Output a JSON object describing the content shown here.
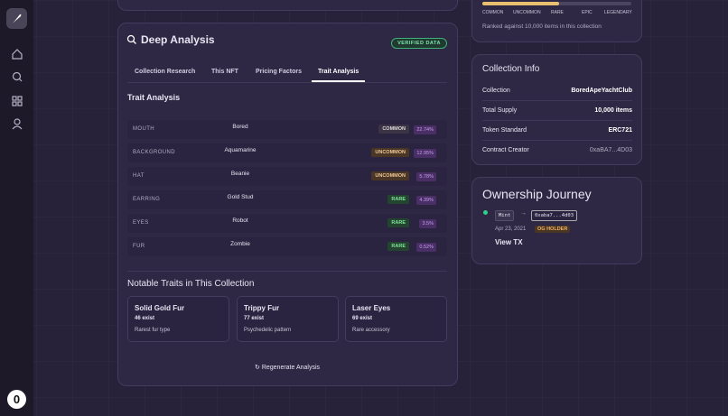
{
  "sidebar": {
    "avatar": "0"
  },
  "deep_analysis": {
    "title": "Deep Analysis",
    "badge": "VERIFIED DATA",
    "tabs": [
      "Collection Research",
      "This NFT",
      "Pricing Factors",
      "Trait Analysis"
    ],
    "trait_analysis": {
      "title": "Trait Analysis",
      "rows": [
        {
          "trait": "MOUTH",
          "value": "Bored",
          "rarity": "COMMON",
          "percent": "22.74%"
        },
        {
          "trait": "BACKGROUND",
          "value": "Aquamarine",
          "rarity": "UNCOMMON",
          "percent": "12.95%"
        },
        {
          "trait": "HAT",
          "value": "Beanie",
          "rarity": "UNCOMMON",
          "percent": "5.78%"
        },
        {
          "trait": "EARRING",
          "value": "Gold Stud",
          "rarity": "RARE",
          "percent": "4.39%"
        },
        {
          "trait": "EYES",
          "value": "Robot",
          "rarity": "RARE",
          "percent": "3.5%"
        },
        {
          "trait": "FUR",
          "value": "Zombie",
          "rarity": "RARE",
          "percent": "0.52%"
        }
      ]
    },
    "notable": {
      "title": "Notable Traits in This Collection",
      "cards": [
        {
          "name": "Solid Gold Fur",
          "count": "46 exist",
          "note": "Rarest fur type"
        },
        {
          "name": "Trippy Fur",
          "count": "77 exist",
          "note": "Psychedelic pattern"
        },
        {
          "name": "Laser Eyes",
          "count": "69 exist",
          "note": "Rare accessory"
        }
      ]
    },
    "regenerate": "Regenerate Analysis"
  },
  "rarity_panel": {
    "levels": [
      "COMMON",
      "UNCOMMON",
      "RARE",
      "EPIC",
      "LEGENDARY"
    ],
    "caption": "Ranked against 10,000 items in this collection"
  },
  "collection_info": {
    "title": "Collection Info",
    "rows": [
      {
        "label": "Collection",
        "value": "BoredApeYachtClub"
      },
      {
        "label": "Total Supply",
        "value": "10,000 items"
      },
      {
        "label": "Token Standard",
        "value": "ERC721"
      },
      {
        "label": "Contract Creator",
        "value": "0xaBA7...4D03"
      }
    ]
  },
  "ownership": {
    "title": "Ownership Journey",
    "event": "Mint",
    "address": "0xaba7...4d03",
    "date": "Apr 23, 2021",
    "badge": "OG HOLDER",
    "link": "View TX"
  }
}
